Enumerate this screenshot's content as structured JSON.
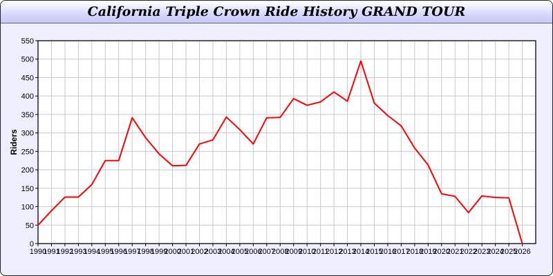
{
  "chart_data": {
    "type": "line",
    "title": "California Triple Crown Ride History GRAND TOUR",
    "xlabel": "",
    "ylabel": "Riders",
    "xlim": [
      1990,
      2027
    ],
    "ylim": [
      0,
      550
    ],
    "yticks": [
      0,
      50,
      100,
      150,
      200,
      250,
      300,
      350,
      400,
      450,
      500,
      550
    ],
    "grid": true,
    "line_color": "#ff0000",
    "x": [
      1990,
      1991,
      1992,
      1993,
      1994,
      1995,
      1996,
      1997,
      1998,
      1999,
      2000,
      2001,
      2002,
      2003,
      2004,
      2005,
      2006,
      2007,
      2008,
      2009,
      2010,
      2011,
      2012,
      2013,
      2014,
      2015,
      2016,
      2017,
      2018,
      2019,
      2020,
      2021,
      2022,
      2023,
      2024,
      2025,
      2026
    ],
    "series": [
      {
        "values": [
          50,
          89,
          126,
          126,
          160,
          225,
          225,
          341,
          287,
          243,
          211,
          212,
          270,
          281,
          343,
          309,
          270,
          341,
          342,
          393,
          375,
          384,
          411,
          386,
          495,
          381,
          347,
          319,
          259,
          213,
          135,
          128,
          84,
          129,
          125,
          124,
          0
        ]
      }
    ]
  }
}
